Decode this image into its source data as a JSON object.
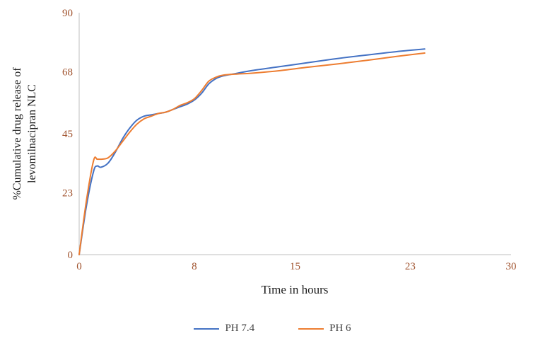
{
  "figure": {
    "background": "#ffffff"
  },
  "axes": {
    "y_title_line1": "%Cumulative drug release of",
    "y_title_line2": "levomilnacipran NLC",
    "x_title": "Time in hours",
    "axis_color": "#BFBFBF",
    "tick_label_color": "#A0522D",
    "title_color": "#1a1a1a"
  },
  "legend": {
    "items": [
      {
        "label": "PH 7.4",
        "color": "#4472C4"
      },
      {
        "label": "PH 6",
        "color": "#ED7D31"
      }
    ]
  },
  "chart_data": {
    "type": "line",
    "title": "",
    "xlabel": "Time in hours",
    "ylabel": "%Cumulative drug release of levomilnacipran NLC",
    "xlim": [
      0,
      30
    ],
    "ylim": [
      0,
      90
    ],
    "x_ticks": [
      0,
      8,
      15,
      23,
      30
    ],
    "y_ticks": [
      0,
      23,
      45,
      68,
      90
    ],
    "grid": false,
    "legend_position": "bottom",
    "x": [
      0,
      0.5,
      1,
      1.25,
      1.5,
      2,
      2.5,
      3,
      3.5,
      4,
      4.5,
      5,
      5.5,
      6,
      6.5,
      7,
      7.5,
      8,
      8.5,
      9,
      9.5,
      10,
      11,
      12,
      14,
      16,
      18,
      20,
      22,
      24
    ],
    "series": [
      {
        "name": "PH 7.4",
        "color": "#4472C4",
        "values": [
          0,
          18,
          31,
          33,
          32.5,
          34,
          38,
          43,
          47,
          50,
          51.5,
          52,
          52.5,
          53,
          54,
          55,
          56,
          57.5,
          60,
          63.5,
          65.5,
          66.5,
          67.5,
          68.5,
          70,
          71.5,
          73,
          74.3,
          75.5,
          76.5
        ]
      },
      {
        "name": "PH 6",
        "color": "#ED7D31",
        "values": [
          0,
          20,
          35,
          35.5,
          35.5,
          36,
          38.5,
          42,
          45.5,
          48.5,
          50.5,
          51.5,
          52.5,
          53,
          54,
          55.5,
          56.5,
          58,
          61,
          64.5,
          66,
          66.8,
          67.2,
          67.5,
          68.5,
          69.8,
          71,
          72.3,
          73.7,
          75
        ]
      }
    ]
  }
}
